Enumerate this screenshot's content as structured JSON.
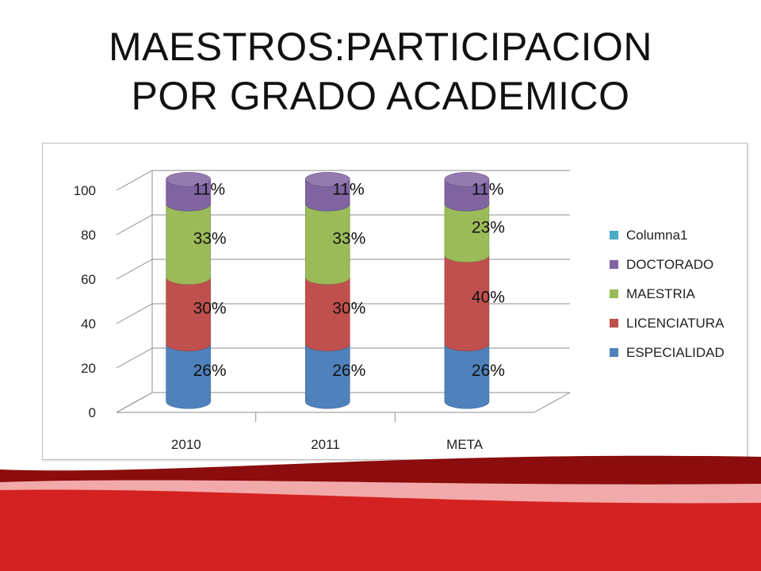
{
  "title_lines": [
    "MAESTROS:PARTICIPACION",
    "POR GRADO ACADEMICO"
  ],
  "chart_data": {
    "type": "bar",
    "stacked": true,
    "three_d": true,
    "categories": [
      "2010",
      "2011",
      "META"
    ],
    "series": [
      {
        "name": "ESPECIALIDAD",
        "values": [
          26,
          26,
          26
        ],
        "labels": [
          "26%",
          "26%",
          "26%"
        ],
        "color": "#4f81bd"
      },
      {
        "name": "LICENCIATURA",
        "values": [
          30,
          30,
          40
        ],
        "labels": [
          "30%",
          "30%",
          "40%"
        ],
        "color": "#c0504d"
      },
      {
        "name": "MAESTRIA",
        "values": [
          33,
          33,
          23
        ],
        "labels": [
          "33%",
          "33%",
          "23%"
        ],
        "color": "#9bbb59"
      },
      {
        "name": "DOCTORADO",
        "values": [
          11,
          11,
          11
        ],
        "labels": [
          "11%",
          "11%",
          "11%"
        ],
        "color": "#8064a2"
      },
      {
        "name": "Columna1",
        "values": [
          0,
          0,
          0
        ],
        "labels": [
          "",
          "",
          ""
        ],
        "color": "#4bacc6"
      }
    ],
    "legend_order": [
      "Columna1",
      "DOCTORADO",
      "MAESTRIA",
      "LICENCIATURA",
      "ESPECIALIDAD"
    ],
    "y_ticks": [
      0,
      20,
      40,
      60,
      80,
      100
    ],
    "ylim": [
      0,
      100
    ],
    "grid": true,
    "legend_position": "right"
  },
  "colors": {
    "wave_dark": "#8b0d0d",
    "wave_red": "#d42222",
    "wave_light": "#f2a9a9"
  }
}
